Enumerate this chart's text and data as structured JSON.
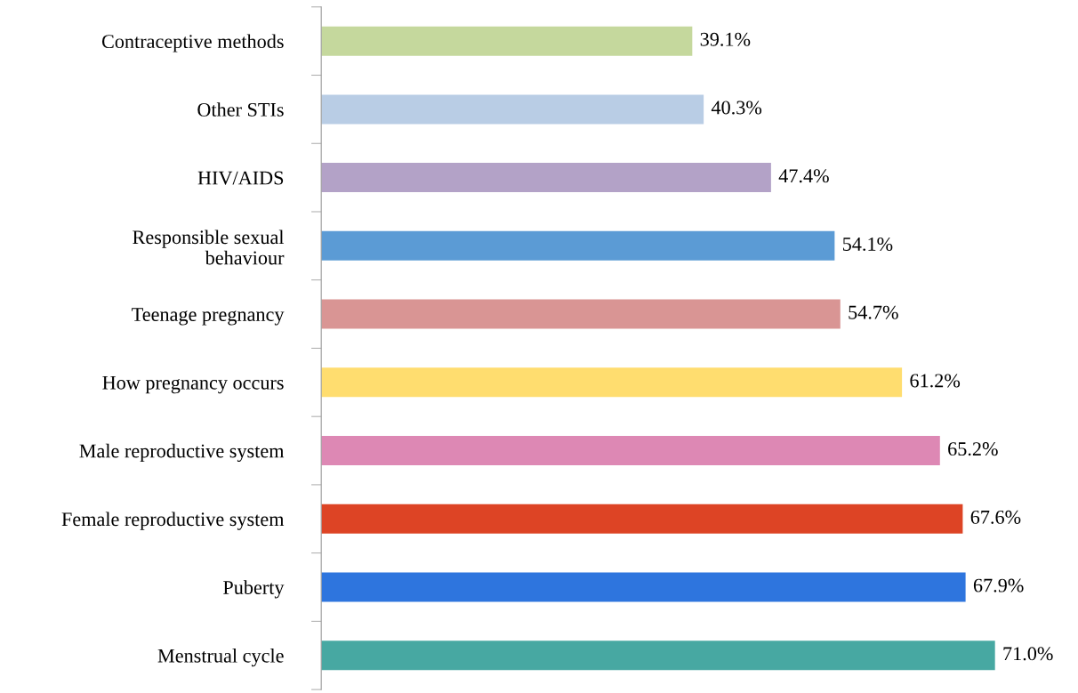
{
  "chart_data": {
    "type": "bar",
    "orientation": "horizontal",
    "relative": false,
    "data_labels": true,
    "grid": false,
    "categories": [
      "Contraceptive methods",
      "Other STIs",
      "HIV/AIDS",
      "Responsible sexual\nbehaviour",
      "Teenage pregnancy",
      "How pregnancy occurs",
      "Male reproductive system",
      "Female reproductive system",
      "Puberty",
      "Menstrual cycle"
    ],
    "values": [
      39.1,
      40.3,
      47.4,
      54.1,
      54.7,
      61.2,
      65.2,
      67.6,
      67.9,
      71.0
    ],
    "value_labels": [
      "39.1%",
      "40.3%",
      "47.4%",
      "54.1%",
      "54.7%",
      "61.2%",
      "65.2%",
      "67.6%",
      "67.9%",
      "71.0%"
    ],
    "colors": [
      "#c5d89d",
      "#b9cde5",
      "#b3a2c7",
      "#5b9bd5",
      "#d99594",
      "#ffdd6f",
      "#dd88b4",
      "#dd4425",
      "#2e75de",
      "#47a8a2"
    ]
  }
}
